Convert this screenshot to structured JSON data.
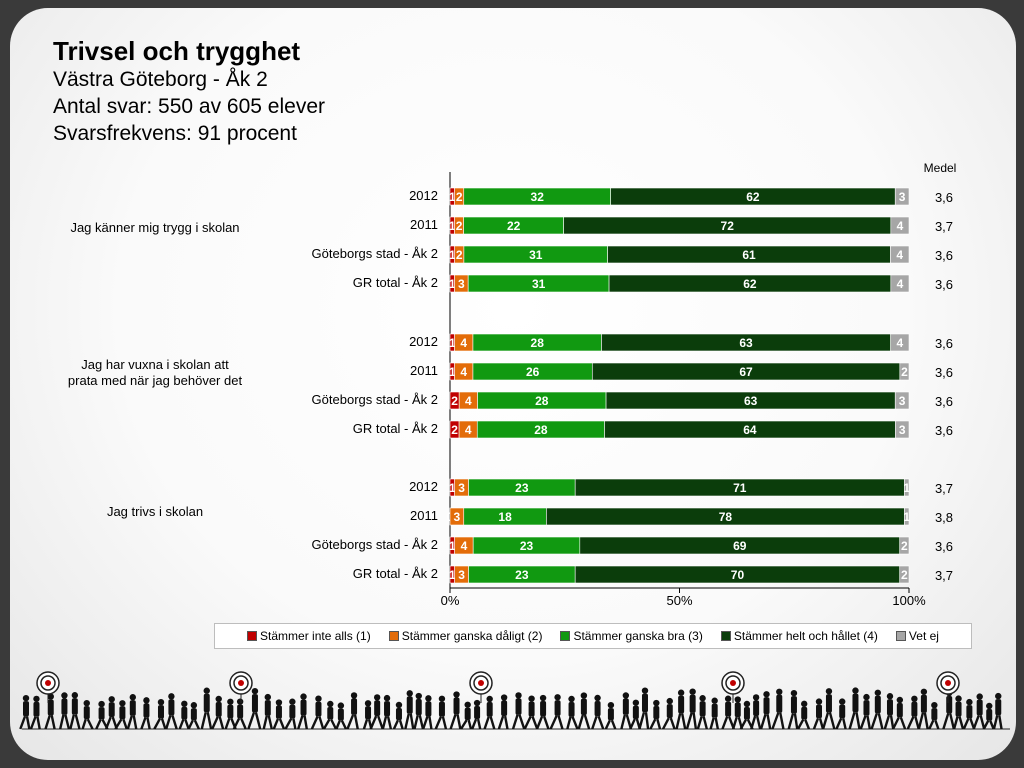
{
  "slide": {
    "title": "Trivsel och trygghet",
    "subtitle_lines": [
      "Västra Göteborg - Åk 2",
      "Antal svar: 550 av 605 elever",
      "Svarsfrekvens: 91 procent"
    ]
  },
  "chart_data": {
    "type": "bar",
    "orientation": "horizontal-stacked-100",
    "medel_header": "Medel",
    "x_ticks": [
      "0%",
      "50%",
      "100%"
    ],
    "xlim": [
      0,
      100
    ],
    "legend_position": "bottom",
    "series_names": [
      "Stämmer inte alls (1)",
      "Stämmer ganska dåligt (2)",
      "Stämmer ganska bra (3)",
      "Stämmer helt och hållet (4)",
      "Vet ej"
    ],
    "colors": [
      "#c00000",
      "#e36c09",
      "#119911",
      "#0b3d0b",
      "#a6a6a6"
    ],
    "groups": [
      {
        "question": "Jag känner mig trygg i skolan",
        "rows": [
          {
            "label": "2012",
            "values": [
              1,
              2,
              32,
              62,
              3
            ],
            "medel": "3,6"
          },
          {
            "label": "2011",
            "values": [
              1,
              2,
              22,
              72,
              4
            ],
            "medel": "3,7"
          },
          {
            "label": "Göteborgs stad - Åk 2",
            "values": [
              1,
              2,
              31,
              61,
              4
            ],
            "medel": "3,6"
          },
          {
            "label": "GR total - Åk 2",
            "values": [
              1,
              3,
              31,
              62,
              4
            ],
            "medel": "3,6"
          }
        ]
      },
      {
        "question": "Jag har vuxna i skolan att prata med när jag behöver det",
        "rows": [
          {
            "label": "2012",
            "values": [
              1,
              4,
              28,
              63,
              4
            ],
            "medel": "3,6"
          },
          {
            "label": "2011",
            "values": [
              1,
              4,
              26,
              67,
              2
            ],
            "medel": "3,6"
          },
          {
            "label": "Göteborgs stad - Åk 2",
            "values": [
              2,
              4,
              28,
              63,
              3
            ],
            "medel": "3,6"
          },
          {
            "label": "GR total - Åk 2",
            "values": [
              2,
              4,
              28,
              64,
              3
            ],
            "medel": "3,6"
          }
        ]
      },
      {
        "question": "Jag trivs i skolan",
        "rows": [
          {
            "label": "2012",
            "values": [
              1,
              3,
              23,
              71,
              1
            ],
            "medel": "3,7"
          },
          {
            "label": "2011",
            "values": [
              0,
              3,
              18,
              78,
              1
            ],
            "medel": "3,8"
          },
          {
            "label": "Göteborgs stad - Åk 2",
            "values": [
              1,
              4,
              23,
              69,
              2
            ],
            "medel": "3,6"
          },
          {
            "label": "GR total - Åk 2",
            "values": [
              1,
              3,
              23,
              70,
              2
            ],
            "medel": "3,7"
          }
        ]
      }
    ]
  }
}
